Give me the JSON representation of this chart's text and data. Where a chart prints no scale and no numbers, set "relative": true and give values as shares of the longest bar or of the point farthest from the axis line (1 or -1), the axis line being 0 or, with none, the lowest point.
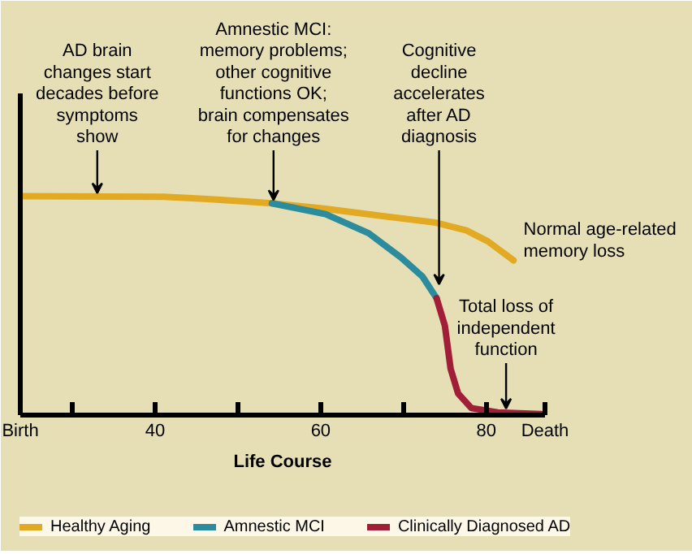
{
  "chart_data": {
    "type": "line",
    "relative": true,
    "xlabel": "Life Course",
    "xlim": [
      23.7,
      87.1
    ],
    "xticks": [
      {
        "value": 23.7,
        "label": "Birth"
      },
      {
        "value": 30,
        "label": null
      },
      40,
      {
        "value": 50,
        "label": null
      },
      60,
      {
        "value": 70,
        "label": null
      },
      80,
      {
        "value": 87.1,
        "label": "Death"
      }
    ],
    "series": [
      {
        "name": "Healthy Aging",
        "color": "#e2aa22",
        "x": [
          24.0,
          41.0,
          47.5,
          54.1,
          60.6,
          67.1,
          73.7,
          77.6,
          80.2,
          83.3
        ],
        "values": [
          1.0,
          0.998,
          0.985,
          0.968,
          0.943,
          0.911,
          0.881,
          0.844,
          0.794,
          0.707
        ]
      },
      {
        "name": "Amnestic MCI",
        "color": "#2a8c9c",
        "x": [
          54.1,
          60.6,
          65.8,
          69.7,
          72.3,
          74.0
        ],
        "values": [
          0.968,
          0.918,
          0.831,
          0.72,
          0.633,
          0.534
        ]
      },
      {
        "name": "Clinically Diagnosed AD",
        "color": "#a01e38",
        "x": [
          74.0,
          75.0,
          75.7,
          76.6,
          78.2,
          81.4,
          86.6
        ],
        "values": [
          0.534,
          0.409,
          0.211,
          0.099,
          0.032,
          0.012,
          0.005
        ]
      }
    ],
    "annotations": [
      {
        "text": "AD brain\nchanges start\ndecades before\nsymptoms\nshow",
        "x": 33,
        "y": 1.0
      },
      {
        "text": "Amnestic MCI:\nmemory problems;\nother cognitive\nfunctions OK;\nbrain compensates\nfor changes",
        "x": 54.3,
        "y": 0.968
      },
      {
        "text": "Cognitive\ndecline\naccelerates\nafter AD\ndiagnosis",
        "x": 74.3,
        "y": 0.583
      },
      {
        "text": "Total loss of\nindependent\nfunction",
        "x": 82.4,
        "y": 0.015
      },
      "Normal age-related\nmemory loss"
    ],
    "legend": "bottom"
  }
}
